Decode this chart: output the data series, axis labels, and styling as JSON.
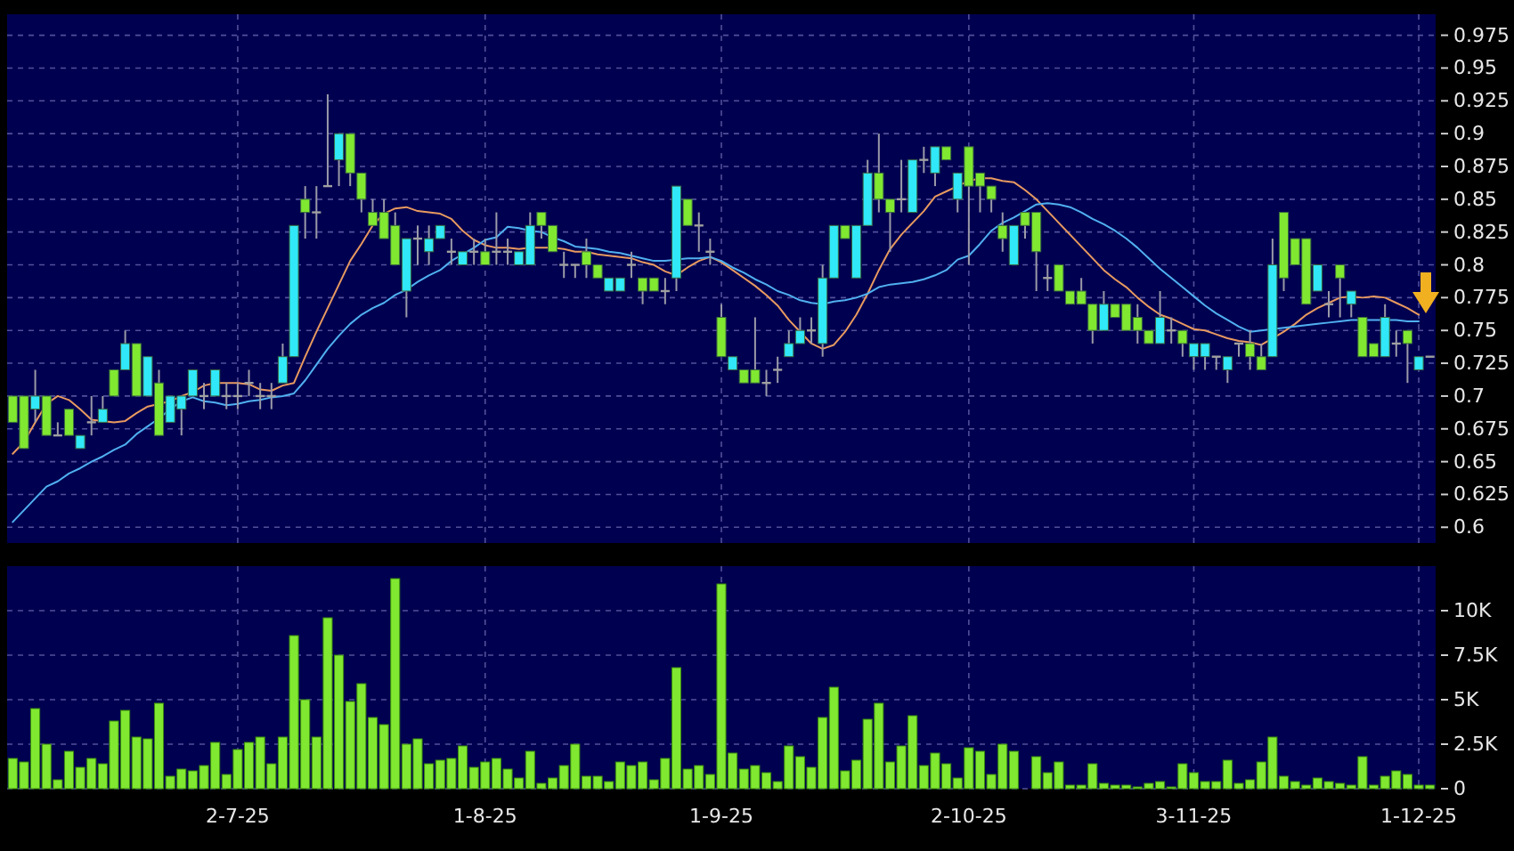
{
  "chart_data": [
    {
      "type": "candlestick",
      "tick_labels": "y",
      "grid": true,
      "ylim": [
        0.588,
        0.991
      ],
      "yticks": [
        0.6,
        0.625,
        0.65,
        0.675,
        0.7,
        0.725,
        0.75,
        0.775,
        0.8,
        0.825,
        0.85,
        0.875,
        0.9,
        0.925,
        0.95,
        0.975
      ],
      "categories": [
        null,
        null,
        null,
        null,
        null,
        null,
        null,
        null,
        null,
        null,
        null,
        null,
        null,
        null,
        null,
        null,
        null,
        null,
        null,
        null,
        null,
        null,
        null,
        null,
        null,
        null,
        null,
        null,
        null,
        null,
        null,
        null,
        null,
        null,
        null,
        null,
        null,
        null,
        null,
        null,
        null,
        null,
        null,
        null,
        null,
        null,
        null,
        null,
        null,
        null,
        null,
        null,
        null,
        null,
        null,
        null,
        null,
        null,
        null,
        null,
        null,
        null,
        null,
        null,
        null,
        null,
        null,
        null,
        null,
        null,
        null,
        null,
        null,
        null,
        null,
        null,
        null,
        null,
        null,
        null,
        null,
        null,
        null,
        null,
        null,
        null,
        null,
        null,
        null,
        null,
        null,
        null,
        null,
        null,
        null,
        null,
        null,
        null,
        null,
        null,
        null,
        null,
        null,
        null,
        null,
        null,
        null,
        null,
        null,
        null,
        null,
        null,
        null,
        null,
        null,
        null,
        null,
        null,
        null,
        null,
        null,
        null,
        null,
        null,
        null,
        null,
        null
      ],
      "ohlc": [
        [
          0.7,
          0.7,
          0.68,
          0.68
        ],
        [
          0.7,
          0.7,
          0.66,
          0.66
        ],
        [
          0.69,
          0.72,
          0.68,
          0.7
        ],
        [
          0.7,
          0.7,
          0.67,
          0.67
        ],
        [
          0.67,
          0.68,
          0.67,
          0.67
        ],
        [
          0.69,
          0.69,
          0.67,
          0.67
        ],
        [
          0.66,
          0.67,
          0.66,
          0.67
        ],
        [
          0.68,
          0.7,
          0.67,
          0.68
        ],
        [
          0.68,
          0.7,
          0.68,
          0.69
        ],
        [
          0.72,
          0.72,
          0.7,
          0.7
        ],
        [
          0.72,
          0.75,
          0.72,
          0.74
        ],
        [
          0.74,
          0.74,
          0.7,
          0.7
        ],
        [
          0.7,
          0.73,
          0.7,
          0.73
        ],
        [
          0.71,
          0.72,
          0.67,
          0.67
        ],
        [
          0.68,
          0.7,
          0.68,
          0.7
        ],
        [
          0.69,
          0.7,
          0.67,
          0.7
        ],
        [
          0.7,
          0.72,
          0.7,
          0.72
        ],
        [
          0.7,
          0.71,
          0.69,
          0.7
        ],
        [
          0.7,
          0.72,
          0.7,
          0.72
        ],
        [
          0.7,
          0.71,
          0.69,
          0.7
        ],
        [
          0.7,
          0.71,
          0.69,
          0.7
        ],
        [
          0.71,
          0.72,
          0.7,
          0.71
        ],
        [
          0.7,
          0.71,
          0.69,
          0.7
        ],
        [
          0.7,
          0.71,
          0.69,
          0.7
        ],
        [
          0.71,
          0.74,
          0.71,
          0.73
        ],
        [
          0.73,
          0.83,
          0.73,
          0.83
        ],
        [
          0.85,
          0.86,
          0.82,
          0.84
        ],
        [
          0.84,
          0.86,
          0.82,
          0.84
        ],
        [
          0.86,
          0.93,
          0.86,
          0.86
        ],
        [
          0.88,
          0.9,
          0.86,
          0.9
        ],
        [
          0.9,
          0.9,
          0.86,
          0.87
        ],
        [
          0.87,
          0.87,
          0.84,
          0.85
        ],
        [
          0.84,
          0.85,
          0.83,
          0.83
        ],
        [
          0.84,
          0.85,
          0.82,
          0.82
        ],
        [
          0.83,
          0.84,
          0.8,
          0.8
        ],
        [
          0.78,
          0.82,
          0.76,
          0.82
        ],
        [
          0.82,
          0.83,
          0.8,
          0.82
        ],
        [
          0.81,
          0.83,
          0.8,
          0.82
        ],
        [
          0.82,
          0.83,
          0.82,
          0.83
        ],
        [
          0.81,
          0.82,
          0.8,
          0.81
        ],
        [
          0.8,
          0.81,
          0.8,
          0.81
        ],
        [
          0.81,
          0.82,
          0.8,
          0.81
        ],
        [
          0.81,
          0.82,
          0.8,
          0.8
        ],
        [
          0.81,
          0.84,
          0.8,
          0.81
        ],
        [
          0.81,
          0.82,
          0.8,
          0.81
        ],
        [
          0.8,
          0.81,
          0.8,
          0.81
        ],
        [
          0.8,
          0.84,
          0.8,
          0.83
        ],
        [
          0.84,
          0.84,
          0.82,
          0.83
        ],
        [
          0.83,
          0.83,
          0.81,
          0.81
        ],
        [
          0.8,
          0.81,
          0.79,
          0.8
        ],
        [
          0.8,
          0.8,
          0.79,
          0.8
        ],
        [
          0.81,
          0.82,
          0.79,
          0.8
        ],
        [
          0.8,
          0.8,
          0.79,
          0.79
        ],
        [
          0.78,
          0.79,
          0.78,
          0.79
        ],
        [
          0.78,
          0.79,
          0.78,
          0.79
        ],
        [
          0.8,
          0.81,
          0.79,
          0.8
        ],
        [
          0.79,
          0.79,
          0.77,
          0.78
        ],
        [
          0.79,
          0.79,
          0.78,
          0.78
        ],
        [
          0.78,
          0.79,
          0.77,
          0.78
        ],
        [
          0.79,
          0.86,
          0.78,
          0.86
        ],
        [
          0.85,
          0.85,
          0.83,
          0.83
        ],
        [
          0.83,
          0.84,
          0.81,
          0.83
        ],
        [
          0.81,
          0.82,
          0.8,
          0.81
        ],
        [
          0.76,
          0.77,
          0.73,
          0.73
        ],
        [
          0.72,
          0.73,
          0.72,
          0.73
        ],
        [
          0.72,
          0.72,
          0.71,
          0.71
        ],
        [
          0.72,
          0.76,
          0.71,
          0.71
        ],
        [
          0.71,
          0.72,
          0.7,
          0.71
        ],
        [
          0.72,
          0.73,
          0.71,
          0.72
        ],
        [
          0.73,
          0.75,
          0.73,
          0.74
        ],
        [
          0.74,
          0.76,
          0.74,
          0.75
        ],
        [
          0.75,
          0.76,
          0.74,
          0.75
        ],
        [
          0.74,
          0.8,
          0.73,
          0.79
        ],
        [
          0.79,
          0.83,
          0.79,
          0.83
        ],
        [
          0.83,
          0.83,
          0.82,
          0.82
        ],
        [
          0.79,
          0.83,
          0.79,
          0.83
        ],
        [
          0.83,
          0.88,
          0.83,
          0.87
        ],
        [
          0.87,
          0.9,
          0.84,
          0.85
        ],
        [
          0.85,
          0.85,
          0.81,
          0.84
        ],
        [
          0.85,
          0.88,
          0.84,
          0.85
        ],
        [
          0.84,
          0.88,
          0.84,
          0.88
        ],
        [
          0.88,
          0.89,
          0.87,
          0.88
        ],
        [
          0.87,
          0.89,
          0.86,
          0.89
        ],
        [
          0.89,
          0.89,
          0.88,
          0.88
        ],
        [
          0.85,
          0.87,
          0.84,
          0.87
        ],
        [
          0.89,
          0.89,
          0.8,
          0.86
        ],
        [
          0.87,
          0.87,
          0.84,
          0.86
        ],
        [
          0.86,
          0.86,
          0.84,
          0.85
        ],
        [
          0.83,
          0.84,
          0.81,
          0.82
        ],
        [
          0.8,
          0.83,
          0.8,
          0.83
        ],
        [
          0.84,
          0.84,
          0.82,
          0.83
        ],
        [
          0.84,
          0.84,
          0.78,
          0.81
        ],
        [
          0.79,
          0.8,
          0.78,
          0.79
        ],
        [
          0.8,
          0.8,
          0.78,
          0.78
        ],
        [
          0.78,
          0.78,
          0.77,
          0.77
        ],
        [
          0.78,
          0.79,
          0.77,
          0.77
        ],
        [
          0.77,
          0.77,
          0.74,
          0.75
        ],
        [
          0.75,
          0.78,
          0.75,
          0.77
        ],
        [
          0.77,
          0.77,
          0.76,
          0.76
        ],
        [
          0.77,
          0.77,
          0.75,
          0.75
        ],
        [
          0.76,
          0.77,
          0.74,
          0.75
        ],
        [
          0.75,
          0.75,
          0.74,
          0.74
        ],
        [
          0.74,
          0.78,
          0.74,
          0.76
        ],
        [
          0.75,
          0.76,
          0.74,
          0.75
        ],
        [
          0.75,
          0.75,
          0.73,
          0.74
        ],
        [
          0.73,
          0.74,
          0.72,
          0.74
        ],
        [
          0.73,
          0.74,
          0.72,
          0.74
        ],
        [
          0.73,
          0.73,
          0.72,
          0.73
        ],
        [
          0.72,
          0.73,
          0.71,
          0.73
        ],
        [
          0.74,
          0.74,
          0.73,
          0.74
        ],
        [
          0.74,
          0.75,
          0.72,
          0.73
        ],
        [
          0.73,
          0.74,
          0.72,
          0.72
        ],
        [
          0.73,
          0.82,
          0.73,
          0.8
        ],
        [
          0.84,
          0.84,
          0.78,
          0.79
        ],
        [
          0.82,
          0.82,
          0.8,
          0.8
        ],
        [
          0.82,
          0.82,
          0.77,
          0.77
        ],
        [
          0.78,
          0.8,
          0.78,
          0.8
        ],
        [
          0.77,
          0.78,
          0.76,
          0.77
        ],
        [
          0.8,
          0.8,
          0.76,
          0.79
        ],
        [
          0.77,
          0.78,
          0.76,
          0.78
        ],
        [
          0.76,
          0.76,
          0.73,
          0.73
        ],
        [
          0.74,
          0.74,
          0.73,
          0.73
        ],
        [
          0.73,
          0.77,
          0.73,
          0.76
        ],
        [
          0.74,
          0.75,
          0.73,
          0.74
        ],
        [
          0.75,
          0.75,
          0.71,
          0.74
        ],
        [
          0.72,
          0.73,
          0.72,
          0.73
        ],
        [
          0.73,
          0.73,
          0.73,
          0.73
        ]
      ],
      "colors": [
        "#80e830",
        "#80e830",
        "#30e8f8",
        "#80e830",
        "#a0a0a0",
        "#80e830",
        "#30e8f8",
        "#a0a0a0",
        "#30e8f8",
        "#80e830",
        "#30e8f8",
        "#80e830",
        "#30e8f8",
        "#80e830",
        "#30e8f8",
        "#30e8f8",
        "#30e8f8",
        "#a0a0a0",
        "#30e8f8",
        "#a0a0a0",
        "#a0a0a0",
        "#a0a0a0",
        "#a0a0a0",
        "#a0a0a0",
        "#30e8f8",
        "#30e8f8",
        "#80e830",
        "#a0a0a0",
        "#a0a0a0",
        "#30e8f8",
        "#80e830",
        "#80e830",
        "#80e830",
        "#80e830",
        "#80e830",
        "#30e8f8",
        "#a0a0a0",
        "#30e8f8",
        "#30e8f8",
        "#a0a0a0",
        "#30e8f8",
        "#a0a0a0",
        "#80e830",
        "#a0a0a0",
        "#a0a0a0",
        "#30e8f8",
        "#30e8f8",
        "#80e830",
        "#80e830",
        "#a0a0a0",
        "#a0a0a0",
        "#80e830",
        "#80e830",
        "#30e8f8",
        "#30e8f8",
        "#a0a0a0",
        "#80e830",
        "#80e830",
        "#a0a0a0",
        "#30e8f8",
        "#80e830",
        "#a0a0a0",
        "#a0a0a0",
        "#80e830",
        "#30e8f8",
        "#80e830",
        "#80e830",
        "#a0a0a0",
        "#a0a0a0",
        "#30e8f8",
        "#30e8f8",
        "#a0a0a0",
        "#30e8f8",
        "#30e8f8",
        "#80e830",
        "#30e8f8",
        "#30e8f8",
        "#80e830",
        "#80e830",
        "#a0a0a0",
        "#30e8f8",
        "#a0a0a0",
        "#30e8f8",
        "#80e830",
        "#30e8f8",
        "#80e830",
        "#80e830",
        "#80e830",
        "#80e830",
        "#30e8f8",
        "#80e830",
        "#80e830",
        "#a0a0a0",
        "#80e830",
        "#80e830",
        "#80e830",
        "#80e830",
        "#30e8f8",
        "#80e830",
        "#80e830",
        "#80e830",
        "#80e830",
        "#30e8f8",
        "#a0a0a0",
        "#80e830",
        "#30e8f8",
        "#30e8f8",
        "#a0a0a0",
        "#30e8f8",
        "#a0a0a0",
        "#80e830",
        "#80e830",
        "#30e8f8",
        "#80e830",
        "#80e830",
        "#80e830",
        "#30e8f8",
        "#a0a0a0",
        "#80e830",
        "#30e8f8",
        "#80e830",
        "#80e830",
        "#30e8f8",
        "#a0a0a0",
        "#80e830",
        "#30e8f8",
        "#a0a0a0"
      ],
      "series": [
        {
          "type": "line",
          "color": "#e89a60",
          "values": [
            0.656,
            0.665,
            0.68,
            0.694,
            0.7,
            0.697,
            0.69,
            0.682,
            0.681,
            0.68,
            0.681,
            0.687,
            0.692,
            0.694,
            0.696,
            0.7,
            0.703,
            0.708,
            0.71,
            0.71,
            0.71,
            0.709,
            0.705,
            0.704,
            0.708,
            0.71,
            0.73,
            0.749,
            0.767,
            0.785,
            0.803,
            0.816,
            0.83,
            0.839,
            0.843,
            0.844,
            0.841,
            0.84,
            0.839,
            0.835,
            0.826,
            0.819,
            0.815,
            0.813,
            0.813,
            0.812,
            0.813,
            0.813,
            0.813,
            0.812,
            0.81,
            0.81,
            0.808,
            0.807,
            0.806,
            0.805,
            0.802,
            0.8,
            0.795,
            0.792,
            0.798,
            0.803,
            0.806,
            0.802,
            0.796,
            0.79,
            0.784,
            0.777,
            0.769,
            0.758,
            0.749,
            0.74,
            0.736,
            0.739,
            0.749,
            0.762,
            0.778,
            0.796,
            0.812,
            0.823,
            0.832,
            0.841,
            0.852,
            0.856,
            0.86,
            0.864,
            0.866,
            0.866,
            0.864,
            0.863,
            0.857,
            0.85,
            0.841,
            0.832,
            0.823,
            0.814,
            0.805,
            0.796,
            0.789,
            0.783,
            0.775,
            0.768,
            0.762,
            0.759,
            0.755,
            0.751,
            0.75,
            0.747,
            0.744,
            0.742,
            0.741,
            0.739,
            0.744,
            0.749,
            0.755,
            0.762,
            0.767,
            0.771,
            0.775,
            0.776,
            0.775,
            0.776,
            0.775,
            0.771,
            0.767,
            0.762,
            null
          ]
        },
        {
          "type": "line",
          "color": "#50b0f0",
          "values": [
            0.604,
            0.613,
            0.622,
            0.631,
            0.635,
            0.641,
            0.645,
            0.65,
            0.654,
            0.659,
            0.663,
            0.671,
            0.677,
            0.683,
            0.69,
            0.696,
            0.699,
            0.696,
            0.695,
            0.693,
            0.694,
            0.696,
            0.697,
            0.699,
            0.7,
            0.702,
            0.712,
            0.724,
            0.736,
            0.746,
            0.755,
            0.762,
            0.767,
            0.771,
            0.777,
            0.781,
            0.787,
            0.792,
            0.796,
            0.803,
            0.808,
            0.813,
            0.819,
            0.821,
            0.829,
            0.828,
            0.826,
            0.825,
            0.821,
            0.818,
            0.814,
            0.813,
            0.812,
            0.81,
            0.809,
            0.807,
            0.805,
            0.803,
            0.803,
            0.804,
            0.805,
            0.805,
            0.806,
            0.803,
            0.798,
            0.794,
            0.789,
            0.785,
            0.78,
            0.777,
            0.773,
            0.771,
            0.77,
            0.772,
            0.773,
            0.775,
            0.778,
            0.783,
            0.785,
            0.786,
            0.787,
            0.789,
            0.792,
            0.796,
            0.804,
            0.807,
            0.816,
            0.826,
            0.832,
            0.836,
            0.841,
            0.846,
            0.847,
            0.846,
            0.844,
            0.84,
            0.835,
            0.831,
            0.826,
            0.82,
            0.813,
            0.805,
            0.797,
            0.79,
            0.783,
            0.776,
            0.769,
            0.763,
            0.758,
            0.753,
            0.749,
            0.75,
            0.751,
            0.752,
            0.753,
            0.754,
            0.755,
            0.756,
            0.757,
            0.758,
            0.758,
            0.758,
            0.758,
            0.758,
            0.757,
            0.757,
            null
          ]
        }
      ]
    },
    {
      "type": "bar",
      "grid": true,
      "color": "#80e830",
      "ylim": [
        0,
        12500
      ],
      "yticks": [
        0,
        {
          "value": 2500,
          "label": "2.5K"
        },
        {
          "value": 5000,
          "label": "5K"
        },
        {
          "value": 7500,
          "label": "7.5K"
        },
        {
          "value": 10000,
          "label": "10K"
        }
      ],
      "categories": [
        null,
        null,
        null,
        null,
        null,
        null,
        null,
        null,
        null,
        null,
        null,
        null,
        null,
        null,
        null,
        null,
        null,
        null,
        null,
        null,
        "2-7-25",
        null,
        null,
        null,
        null,
        null,
        null,
        null,
        null,
        null,
        null,
        null,
        null,
        null,
        null,
        null,
        null,
        null,
        null,
        null,
        null,
        null,
        "1-8-25",
        null,
        null,
        null,
        null,
        null,
        null,
        null,
        null,
        null,
        null,
        null,
        null,
        null,
        null,
        null,
        null,
        null,
        null,
        null,
        null,
        "1-9-25",
        null,
        null,
        null,
        null,
        null,
        null,
        null,
        null,
        null,
        null,
        null,
        null,
        null,
        null,
        null,
        null,
        null,
        null,
        null,
        null,
        null,
        "2-10-25",
        null,
        null,
        null,
        null,
        null,
        null,
        null,
        null,
        null,
        null,
        null,
        null,
        null,
        null,
        null,
        null,
        null,
        null,
        null,
        "3-11-25",
        null,
        null,
        null,
        null,
        null,
        null,
        null,
        null,
        null,
        null,
        null,
        null,
        null,
        null,
        null,
        null,
        null,
        null,
        null,
        "1-12-25",
        null
      ],
      "values": [
        1700,
        1500,
        4500,
        2500,
        500,
        2100,
        1200,
        1700,
        1400,
        3800,
        4400,
        2900,
        2800,
        4800,
        700,
        1100,
        1000,
        1300,
        2600,
        800,
        2200,
        2600,
        2900,
        1400,
        2900,
        8600,
        5000,
        2900,
        9600,
        7500,
        4900,
        5900,
        4000,
        3600,
        11800,
        2500,
        2800,
        1400,
        1600,
        1700,
        2400,
        1200,
        1500,
        1700,
        1100,
        600,
        2100,
        300,
        600,
        1300,
        2500,
        700,
        700,
        400,
        1500,
        1300,
        1500,
        500,
        1700,
        6800,
        1100,
        1300,
        800,
        11500,
        2000,
        1100,
        1300,
        900,
        400,
        2400,
        1800,
        1200,
        4000,
        5700,
        1000,
        1600,
        3900,
        4800,
        1500,
        2400,
        4100,
        1300,
        2000,
        1400,
        600,
        2300,
        2100,
        800,
        2500,
        2100,
        0,
        1800,
        900,
        1500,
        200,
        200,
        1400,
        300,
        200,
        200,
        100,
        300,
        400,
        100,
        1400,
        900,
        400,
        400,
        1600,
        300,
        500,
        1500,
        2900,
        700,
        400,
        200,
        600,
        400,
        300,
        200,
        1800,
        200,
        700,
        1000,
        800,
        200,
        200
      ]
    }
  ]
}
